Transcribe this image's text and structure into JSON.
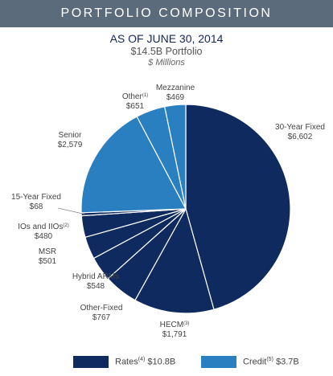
{
  "banner": {
    "title": "PORTFOLIO COMPOSITION"
  },
  "header": {
    "date": "AS OF JUNE 30, 2014",
    "portfolio": "$14.5B Portfolio",
    "units": "$ Millions"
  },
  "colors": {
    "rates": "#0e2a5e",
    "credit": "#2a7fc1",
    "slice_border": "#ffffff"
  },
  "chart_data": {
    "type": "pie",
    "title": "",
    "start": "12 o'clock, clockwise",
    "slices": [
      {
        "name": "30-Year Fixed",
        "note": "",
        "value": 6602,
        "value_label": "$6,602",
        "group": "rates"
      },
      {
        "name": "HECM",
        "note": "(3)",
        "value": 1791,
        "value_label": "$1,791",
        "group": "rates"
      },
      {
        "name": "Other-Fixed",
        "note": "",
        "value": 767,
        "value_label": "$767",
        "group": "rates"
      },
      {
        "name": "Hybrid ARMs",
        "note": "",
        "value": 548,
        "value_label": "$548",
        "group": "rates"
      },
      {
        "name": "MSR",
        "note": "",
        "value": 501,
        "value_label": "$501",
        "group": "rates"
      },
      {
        "name": "IOs and IIOs",
        "note": "(2)",
        "value": 480,
        "value_label": "$480",
        "group": "rates"
      },
      {
        "name": "15-Year Fixed",
        "note": "",
        "value": 68,
        "value_label": "$68",
        "group": "rates"
      },
      {
        "name": "Senior",
        "note": "",
        "value": 2579,
        "value_label": "$2,579",
        "group": "credit"
      },
      {
        "name": "Other",
        "note": "(1)",
        "value": 651,
        "value_label": "$651",
        "group": "credit"
      },
      {
        "name": "Mezzanine",
        "note": "",
        "value": 469,
        "value_label": "$469",
        "group": "credit"
      }
    ],
    "legend": {
      "placement": "bottom",
      "items": [
        {
          "key": "rates",
          "name": "Rates",
          "note": "(4)",
          "total": "$10.8B"
        },
        {
          "key": "credit",
          "name": "Credit",
          "note": "(5)",
          "total": "$3.7B"
        }
      ]
    }
  }
}
